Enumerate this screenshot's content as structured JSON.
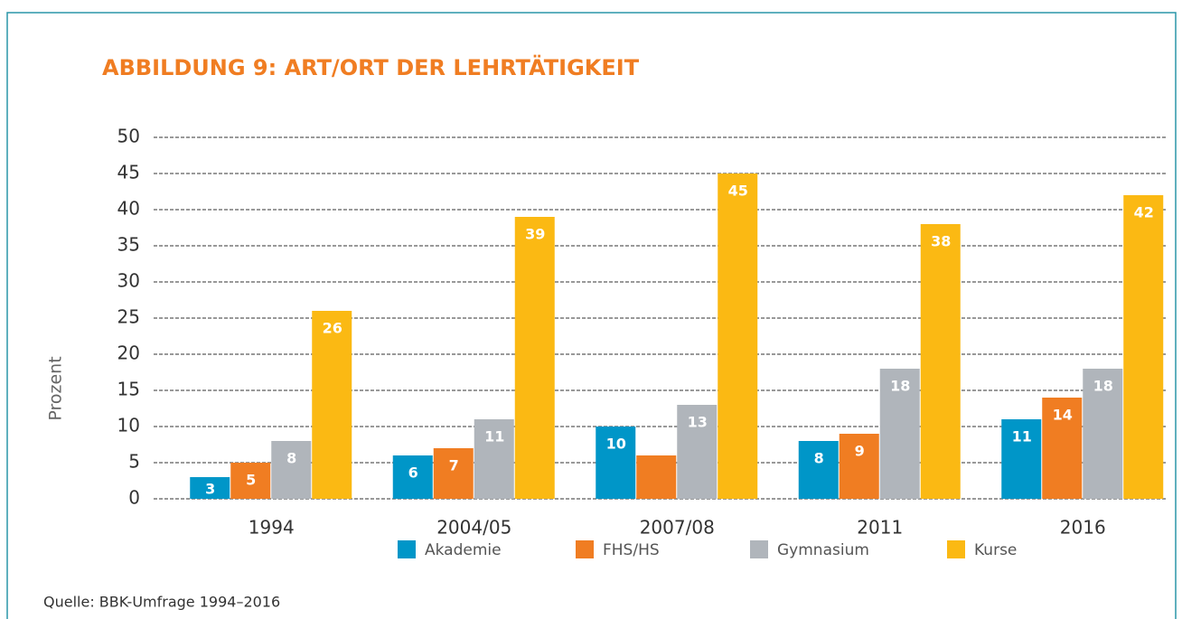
{
  "chart_data": {
    "type": "bar",
    "title": "ABBILDUNG 9: ART/ORT DER LEHRTÄTIGKEIT",
    "y_label": "Prozent",
    "source": "Quelle: BBK-Umfrage 1994–2016",
    "categories": [
      "1994",
      "2004/05",
      "2007/08",
      "2011",
      "2016"
    ],
    "series": [
      {
        "name": "Akademie",
        "color": "#0096c8",
        "values": [
          3,
          6,
          10,
          8,
          11
        ],
        "value_labels": [
          "3",
          "6",
          "10",
          "8",
          "11"
        ]
      },
      {
        "name": "FHS/HS",
        "color": "#f07d22",
        "values": [
          5,
          7,
          6,
          9,
          14
        ],
        "value_labels": [
          "5",
          "7",
          null,
          "9",
          "14"
        ]
      },
      {
        "name": "Gymnasium",
        "color": "#b0b5bb",
        "values": [
          8,
          11,
          13,
          18,
          18
        ],
        "value_labels": [
          "8",
          "11",
          "13",
          "18",
          "18"
        ]
      },
      {
        "name": "Kurse",
        "color": "#fbb913",
        "values": [
          26,
          39,
          45,
          38,
          42
        ],
        "value_labels": [
          "26",
          "39",
          "45",
          "38",
          "42"
        ]
      }
    ],
    "ylim": [
      0,
      50
    ],
    "yticks": [
      0,
      5,
      10,
      15,
      20,
      25,
      30,
      35,
      40,
      45,
      50
    ],
    "grid": true
  }
}
